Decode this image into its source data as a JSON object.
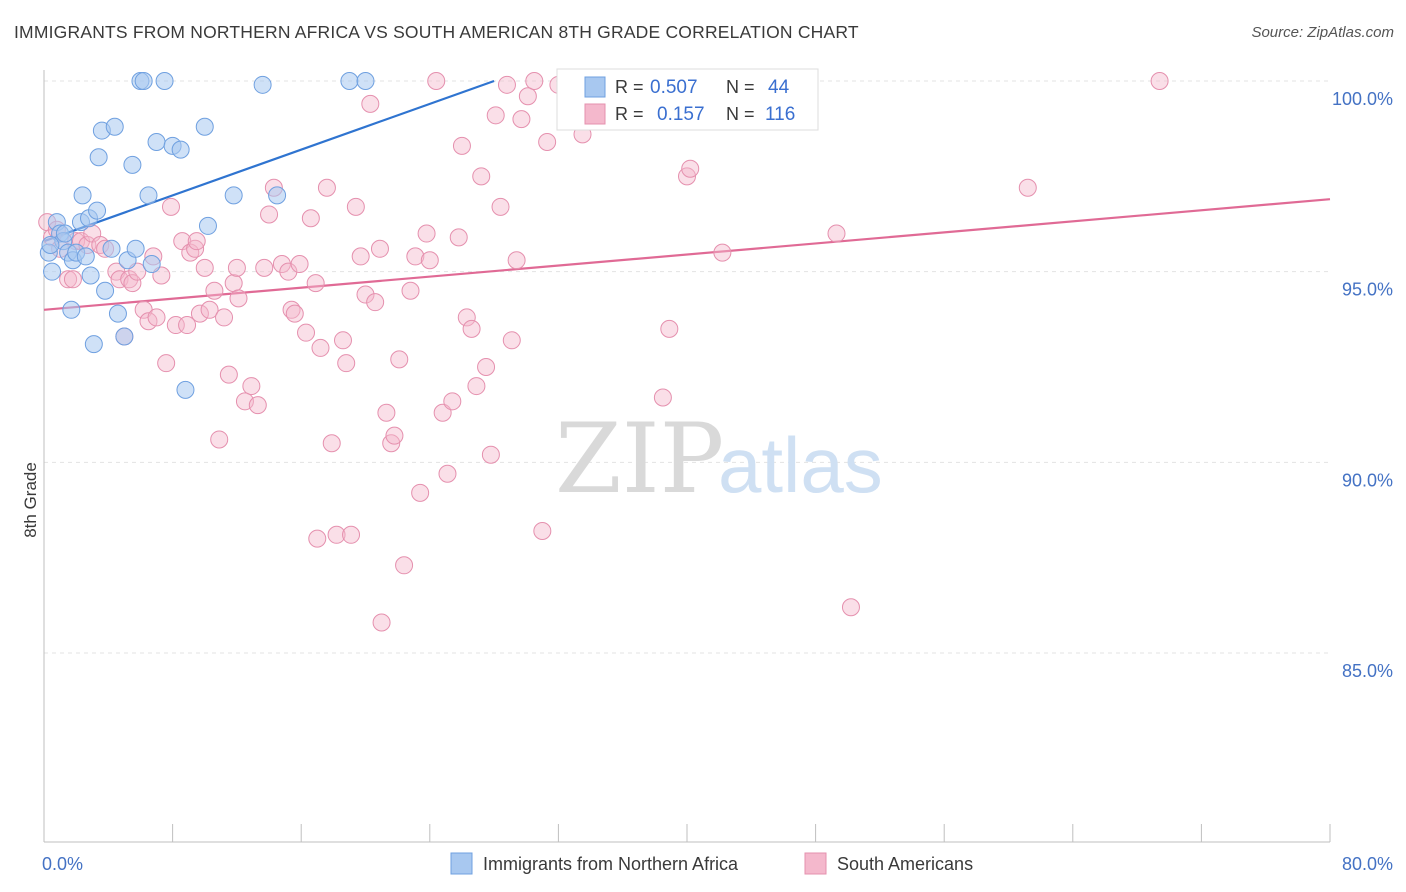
{
  "title": "IMMIGRANTS FROM NORTHERN AFRICA VS SOUTH AMERICAN 8TH GRADE CORRELATION CHART",
  "source": "Source: ZipAtlas.com",
  "watermark": {
    "zip": "ZIP",
    "atlas": "atlas"
  },
  "chart_data": {
    "type": "scatter",
    "ylabel": "8th Grade",
    "xlim": [
      0,
      80
    ],
    "ylim": [
      80,
      100.5
    ],
    "x_ticks_labels": [
      "0.0%",
      "80.0%"
    ],
    "y_ticks": [
      100,
      95,
      90,
      85
    ],
    "y_ticks_labels": [
      "100.0%",
      "95.0%",
      "90.0%",
      "85.0%"
    ],
    "grid": true,
    "legend_position": "top-center",
    "colors": {
      "blue": "#a8c8f0",
      "blue_line": "#2f74d0",
      "pink": "#f4b8cc",
      "pink_line": "#e06a95"
    },
    "legend": [
      {
        "r_label": "R =",
        "r_value": "0.507",
        "n_label": "N =",
        "n_value": "44"
      },
      {
        "r_label": "R =",
        "r_value": "0.157",
        "n_label": "N =",
        "n_value": "116"
      }
    ],
    "series": [
      {
        "name": "Immigrants from Northern Africa",
        "color": "blue",
        "trend": {
          "x1": 0,
          "y1": 95.8,
          "x2": 28,
          "y2": 100
        },
        "points": [
          [
            0.3,
            95.5
          ],
          [
            0.5,
            95.0
          ],
          [
            0.8,
            96.3
          ],
          [
            1.0,
            96.0
          ],
          [
            1.2,
            95.8
          ],
          [
            1.5,
            95.5
          ],
          [
            1.7,
            94.0
          ],
          [
            1.8,
            95.3
          ],
          [
            2.0,
            95.5
          ],
          [
            2.3,
            96.3
          ],
          [
            2.4,
            97.0
          ],
          [
            2.8,
            96.4
          ],
          [
            2.9,
            94.9
          ],
          [
            3.1,
            93.1
          ],
          [
            3.3,
            96.6
          ],
          [
            3.4,
            98.0
          ],
          [
            3.6,
            98.7
          ],
          [
            3.8,
            94.5
          ],
          [
            4.2,
            95.6
          ],
          [
            4.4,
            98.8
          ],
          [
            4.6,
            93.9
          ],
          [
            5.0,
            93.3
          ],
          [
            5.2,
            95.3
          ],
          [
            5.5,
            97.8
          ],
          [
            5.7,
            95.6
          ],
          [
            6.0,
            100.0
          ],
          [
            6.2,
            100.0
          ],
          [
            6.5,
            97.0
          ],
          [
            6.7,
            95.2
          ],
          [
            7.0,
            98.4
          ],
          [
            7.5,
            100.0
          ],
          [
            8.0,
            98.3
          ],
          [
            8.5,
            98.2
          ],
          [
            8.8,
            91.9
          ],
          [
            10.0,
            98.8
          ],
          [
            10.2,
            96.2
          ],
          [
            11.8,
            97.0
          ],
          [
            13.6,
            99.9
          ],
          [
            14.5,
            97.0
          ],
          [
            19.0,
            100.0
          ],
          [
            20.0,
            100.0
          ],
          [
            0.4,
            95.7
          ],
          [
            1.3,
            96.0
          ],
          [
            2.6,
            95.4
          ]
        ]
      },
      {
        "name": "South Americans",
        "color": "pink",
        "trend": {
          "x1": 0,
          "y1": 94.0,
          "x2": 80,
          "y2": 96.9
        },
        "points": [
          [
            0.2,
            96.3
          ],
          [
            0.5,
            95.9
          ],
          [
            0.8,
            96.1
          ],
          [
            1.0,
            95.6
          ],
          [
            1.5,
            94.8
          ],
          [
            1.8,
            94.8
          ],
          [
            2.0,
            95.8
          ],
          [
            2.3,
            95.8
          ],
          [
            2.7,
            95.7
          ],
          [
            3.0,
            96.0
          ],
          [
            3.5,
            95.7
          ],
          [
            3.8,
            95.6
          ],
          [
            4.5,
            95.0
          ],
          [
            4.7,
            94.8
          ],
          [
            5.0,
            93.3
          ],
          [
            5.3,
            94.8
          ],
          [
            5.5,
            94.7
          ],
          [
            5.8,
            95.0
          ],
          [
            6.2,
            94.0
          ],
          [
            6.5,
            93.7
          ],
          [
            6.8,
            95.4
          ],
          [
            7.0,
            93.8
          ],
          [
            7.3,
            94.9
          ],
          [
            7.6,
            92.6
          ],
          [
            7.9,
            96.7
          ],
          [
            8.2,
            93.6
          ],
          [
            8.6,
            95.8
          ],
          [
            8.9,
            93.6
          ],
          [
            9.1,
            95.5
          ],
          [
            9.4,
            95.6
          ],
          [
            9.7,
            93.9
          ],
          [
            10.0,
            95.1
          ],
          [
            10.3,
            94.0
          ],
          [
            10.6,
            94.5
          ],
          [
            10.9,
            90.6
          ],
          [
            11.2,
            93.8
          ],
          [
            11.5,
            92.3
          ],
          [
            11.8,
            94.7
          ],
          [
            12.1,
            94.3
          ],
          [
            12.5,
            91.6
          ],
          [
            12.9,
            92.0
          ],
          [
            13.3,
            91.5
          ],
          [
            13.7,
            95.1
          ],
          [
            14.0,
            96.5
          ],
          [
            14.3,
            97.2
          ],
          [
            14.8,
            95.2
          ],
          [
            15.2,
            95.0
          ],
          [
            15.4,
            94.0
          ],
          [
            15.6,
            93.9
          ],
          [
            15.9,
            95.2
          ],
          [
            16.3,
            93.4
          ],
          [
            16.6,
            96.4
          ],
          [
            16.9,
            94.7
          ],
          [
            17.2,
            93.0
          ],
          [
            17.6,
            97.2
          ],
          [
            17.9,
            90.5
          ],
          [
            18.2,
            88.1
          ],
          [
            18.6,
            93.2
          ],
          [
            18.8,
            92.6
          ],
          [
            19.1,
            88.1
          ],
          [
            19.4,
            96.7
          ],
          [
            19.7,
            95.4
          ],
          [
            20.0,
            94.4
          ],
          [
            20.3,
            99.4
          ],
          [
            20.6,
            94.2
          ],
          [
            20.9,
            95.6
          ],
          [
            21.3,
            91.3
          ],
          [
            21.6,
            90.5
          ],
          [
            21.8,
            90.7
          ],
          [
            22.1,
            92.7
          ],
          [
            22.4,
            87.3
          ],
          [
            22.8,
            94.5
          ],
          [
            23.1,
            95.4
          ],
          [
            23.4,
            89.2
          ],
          [
            23.8,
            96.0
          ],
          [
            24.0,
            95.3
          ],
          [
            24.4,
            100.0
          ],
          [
            24.8,
            91.3
          ],
          [
            25.1,
            89.7
          ],
          [
            25.4,
            91.6
          ],
          [
            25.8,
            95.9
          ],
          [
            26.0,
            98.3
          ],
          [
            26.3,
            93.8
          ],
          [
            26.6,
            93.5
          ],
          [
            26.9,
            92.0
          ],
          [
            27.2,
            97.5
          ],
          [
            27.5,
            92.5
          ],
          [
            27.8,
            90.2
          ],
          [
            28.1,
            99.1
          ],
          [
            28.4,
            96.7
          ],
          [
            28.8,
            99.9
          ],
          [
            29.1,
            93.2
          ],
          [
            29.4,
            95.3
          ],
          [
            29.7,
            99.0
          ],
          [
            30.1,
            99.6
          ],
          [
            31.0,
            88.2
          ],
          [
            31.3,
            98.4
          ],
          [
            32.0,
            99.9
          ],
          [
            33.0,
            100.0
          ],
          [
            33.5,
            98.6
          ],
          [
            35.0,
            100.0
          ],
          [
            38.5,
            91.7
          ],
          [
            38.9,
            93.5
          ],
          [
            40.0,
            97.5
          ],
          [
            40.2,
            97.7
          ],
          [
            42.2,
            95.5
          ],
          [
            49.3,
            96.0
          ],
          [
            50.2,
            86.2
          ],
          [
            61.2,
            97.2
          ],
          [
            69.4,
            100.0
          ],
          [
            17.0,
            88.0
          ],
          [
            21.0,
            85.8
          ],
          [
            9.5,
            95.8
          ],
          [
            12.0,
            95.1
          ],
          [
            30.5,
            100.0
          ]
        ]
      }
    ]
  },
  "bottom_legend": [
    {
      "label": "Immigrants from Northern Africa",
      "color": "blue"
    },
    {
      "label": "South Americans",
      "color": "pink"
    }
  ]
}
